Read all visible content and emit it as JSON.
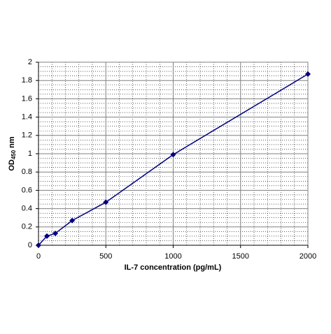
{
  "chart_data": {
    "type": "line",
    "x": [
      0,
      62.5,
      125,
      250,
      500,
      1000,
      2000
    ],
    "series": [
      {
        "values": [
          0,
          0.1,
          0.13,
          0.27,
          0.47,
          0.99,
          1.87
        ],
        "color": "#000080"
      }
    ],
    "xlim": [
      0,
      2000
    ],
    "xticks": [
      0,
      500,
      1000,
      1500,
      2000
    ],
    "ylim": [
      0,
      2
    ],
    "yticks": [
      0,
      0.2,
      0.4,
      0.6,
      0.8,
      1,
      1.2,
      1.4,
      1.6,
      1.8,
      2
    ],
    "xlabel": "IL-7 concentration (pg/mL)",
    "ylabel": {
      "text": "OD",
      "subscript": "450",
      "suffix": "nm"
    },
    "grid": true,
    "minor_grid": true,
    "marker": "diamond"
  }
}
